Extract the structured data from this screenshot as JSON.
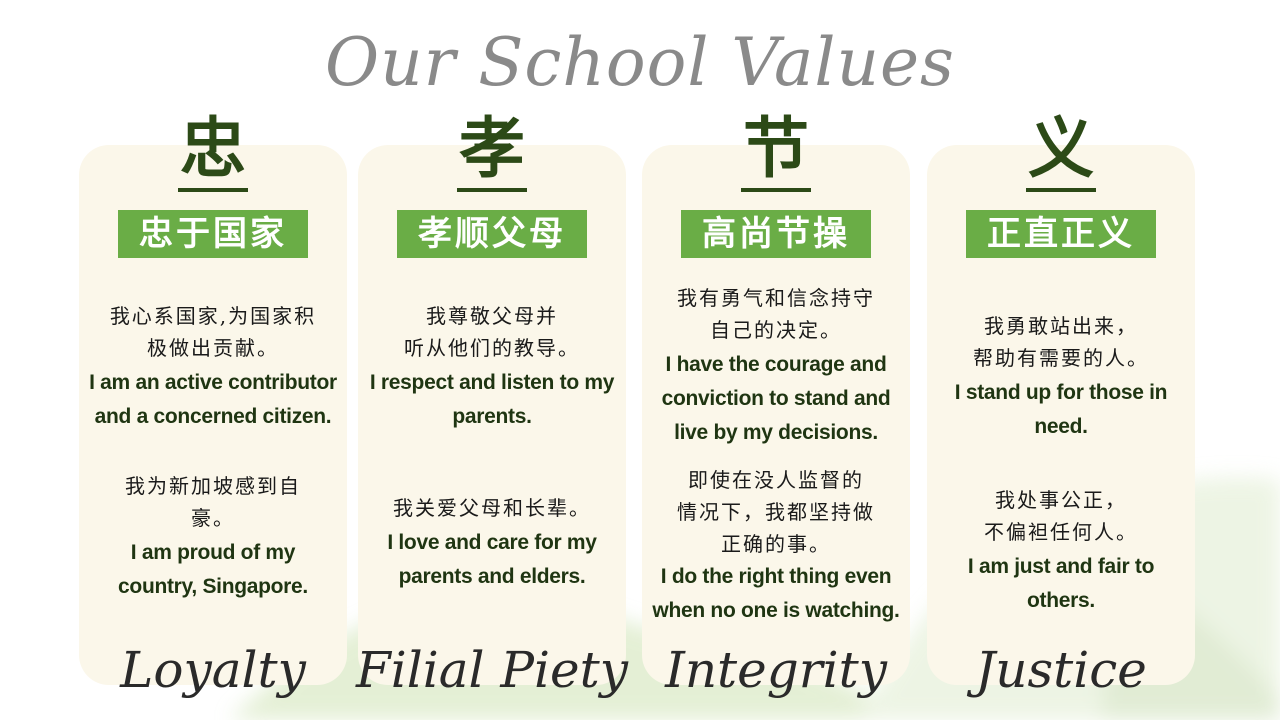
{
  "title": "Our School Values",
  "values": [
    {
      "character": "忠",
      "tag": "忠于国家",
      "cn1": "我心系国家,为国家积极做出贡献。",
      "cn1_l1": "我心系国家,为国家积",
      "cn1_l2": "极做出贡献。",
      "en1_l1": "I am an active contributor",
      "en1_l2": "and a concerned citizen.",
      "cn2_l1": "我为新加坡感到自",
      "cn2_l2": "豪。",
      "en2_l1": "I am proud of my",
      "en2_l2": "country, Singapore.",
      "name": "Loyalty"
    },
    {
      "character": "孝",
      "tag": "孝顺父母",
      "cn1_l1": "我尊敬父母并",
      "cn1_l2": "听从他们的教导。",
      "en1_l1": "I respect and listen to my",
      "en1_l2": "parents.",
      "cn2_l1": "我关爱父母和长辈。",
      "en2_l1": "I love and care for my",
      "en2_l2": "parents and elders.",
      "name": "Filial Piety"
    },
    {
      "character": "节",
      "tag": "高尚节操",
      "cn1_l1": "我有勇气和信念持守",
      "cn1_l2": "自己的决定。",
      "en1_l1": "I have the courage and",
      "en1_l2": "conviction to stand and",
      "en1_l3": "live by my decisions.",
      "cn2_l1": "即使在没人监督的",
      "cn2_l2": "情况下，我都坚持做",
      "cn2_l3": "正确的事。",
      "en2_l1": "I do the right thing even",
      "en2_l2": "when no one is watching.",
      "name": "Integrity"
    },
    {
      "character": "义",
      "tag": "正直正义",
      "cn1_l1": "我勇敢站出来，",
      "cn1_l2": "帮助有需要的人。",
      "en1_l1": "I stand up for those in",
      "en1_l2": "need.",
      "cn2_l1": "我处事公正，",
      "cn2_l2": "不偏袒任何人。",
      "en2_l1": "I am just and fair to",
      "en2_l2": "others.",
      "name": "Justice"
    }
  ],
  "colors": {
    "tag_green": "#6aad46",
    "dark_green": "#2c4a17",
    "card_cream": "#fbf7ea"
  }
}
